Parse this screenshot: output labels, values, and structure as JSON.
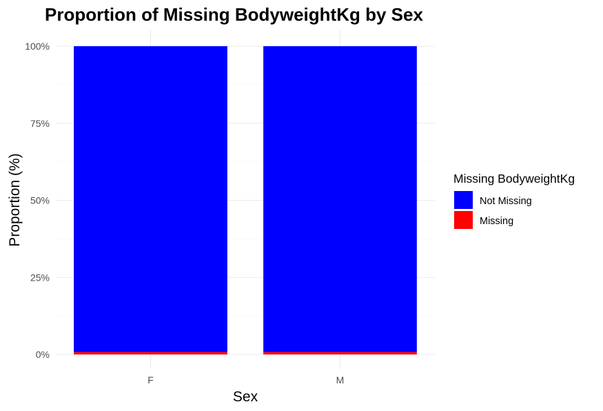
{
  "chart_data": {
    "type": "bar",
    "stacked": true,
    "title": "Proportion of Missing BodyweightKg by Sex",
    "xlabel": "Sex",
    "ylabel": "Proportion (%)",
    "categories": [
      "F",
      "M"
    ],
    "ylim": [
      0,
      100
    ],
    "yticks": [
      0,
      25,
      50,
      75,
      100
    ],
    "ytick_labels": [
      "0%",
      "25%",
      "50%",
      "75%",
      "100%"
    ],
    "grid": true,
    "legend": {
      "title": "Missing BodyweightKg",
      "position": "right",
      "entries": [
        "Not Missing",
        "Missing"
      ]
    },
    "series": [
      {
        "name": "Missing",
        "color": "#ff0000",
        "values": [
          0.8,
          0.8
        ]
      },
      {
        "name": "Not Missing",
        "color": "#0000ff",
        "values": [
          99.2,
          99.2
        ]
      }
    ]
  }
}
